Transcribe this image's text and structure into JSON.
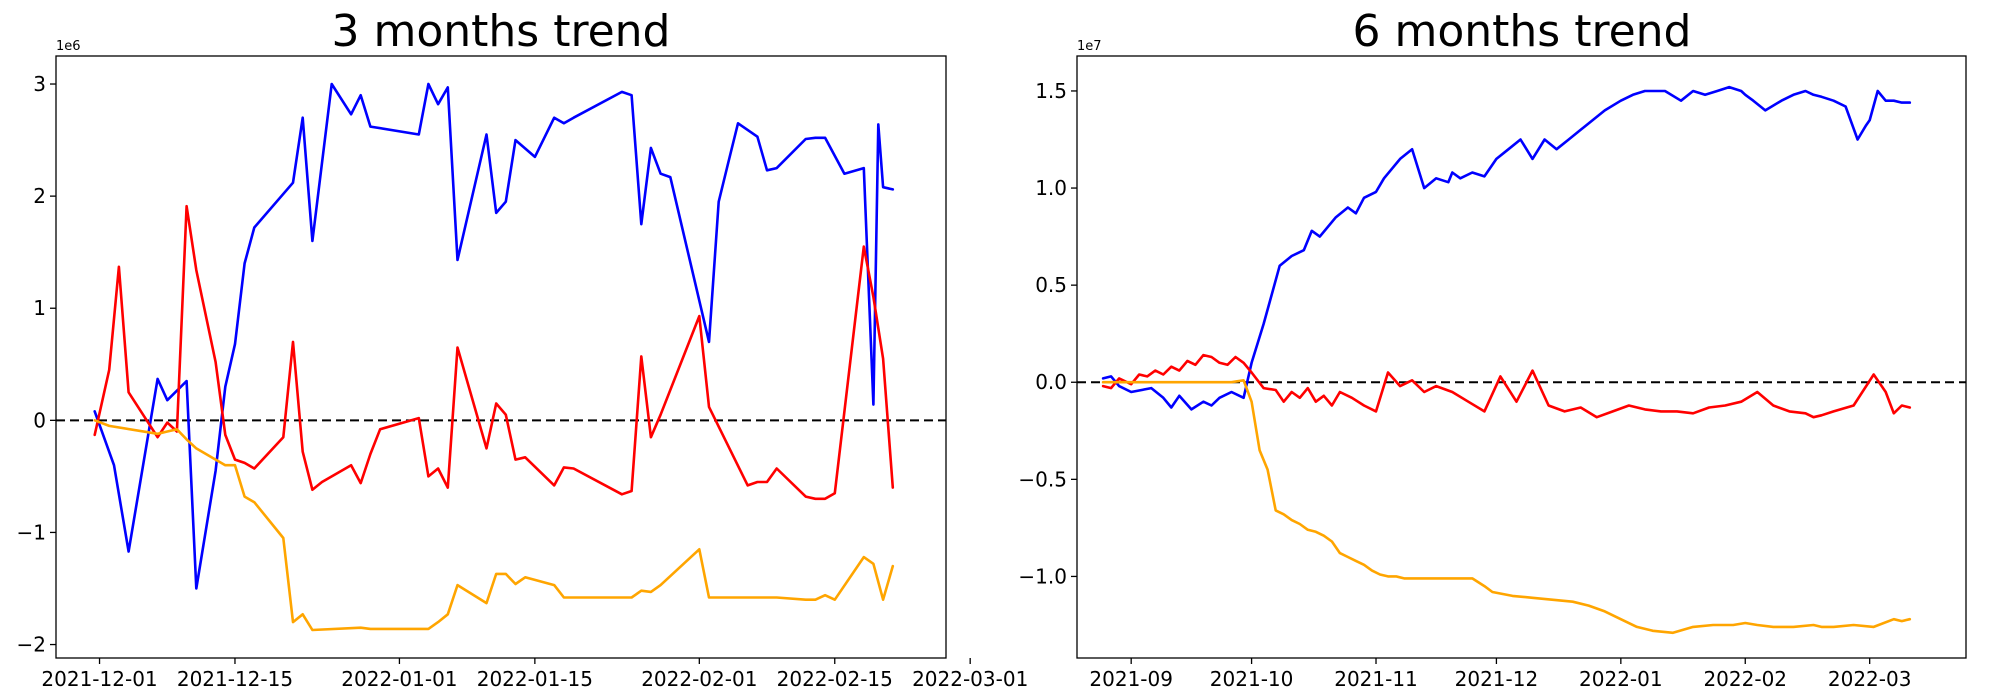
{
  "chart_data": [
    {
      "type": "line",
      "title": "3 months trend",
      "y_exponent": "1e6",
      "ylim": [
        -2.12,
        3.25
      ],
      "xlim": [
        -4.5,
        87.5
      ],
      "y_ticks": [
        -2,
        -1,
        0,
        1,
        2,
        3
      ],
      "y_tick_labels": [
        "−2",
        "−1",
        "0",
        "1",
        "2",
        "3"
      ],
      "x_ticks": [
        0,
        14,
        31,
        45,
        62,
        76,
        90
      ],
      "x_tick_labels": [
        "2021-12-01",
        "2021-12-15",
        "2022-01-01",
        "2022-01-15",
        "2022-02-01",
        "2022-02-15",
        "2022-03-01"
      ],
      "reference_line": 0,
      "series": [
        {
          "name": "blue",
          "color": "#0000ff",
          "x": [
            -0.5,
            1.5,
            3,
            6,
            7,
            9,
            10,
            12,
            13,
            14,
            15,
            16,
            20,
            21,
            22,
            24,
            26,
            27,
            28,
            33,
            34,
            35,
            36,
            37,
            40,
            41,
            42,
            43,
            45,
            47,
            48,
            49,
            54,
            55,
            56,
            57,
            58,
            59,
            63,
            64,
            65,
            66,
            68,
            69,
            70,
            73,
            74,
            75,
            77,
            79,
            80,
            80.5,
            81,
            82
          ],
          "y": [
            0.08,
            -0.4,
            -1.17,
            0.37,
            0.18,
            0.35,
            -1.5,
            -0.45,
            0.3,
            0.68,
            1.4,
            1.72,
            2.12,
            2.7,
            1.6,
            3.0,
            2.73,
            2.9,
            2.62,
            2.55,
            3.0,
            2.82,
            2.97,
            1.43,
            2.55,
            1.85,
            1.95,
            2.5,
            2.35,
            2.7,
            2.65,
            2.7,
            2.93,
            2.9,
            1.75,
            2.43,
            2.2,
            2.17,
            0.7,
            1.95,
            2.3,
            2.65,
            2.53,
            2.23,
            2.25,
            2.51,
            2.52,
            2.52,
            2.2,
            2.25,
            0.14,
            2.64,
            2.08,
            2.06
          ]
        },
        {
          "name": "red",
          "color": "#ff0000",
          "x": [
            -0.5,
            1,
            2,
            3,
            6,
            7,
            8,
            9,
            10,
            12,
            13,
            14,
            15,
            16,
            19,
            20,
            21,
            22,
            23,
            26,
            27,
            28,
            29,
            33,
            34,
            35,
            36,
            37,
            40,
            41,
            42,
            43,
            44,
            47,
            48,
            49,
            54,
            55,
            56,
            57,
            58,
            62,
            63,
            67,
            68,
            69,
            70,
            73,
            74,
            75,
            76,
            79,
            80,
            81,
            82
          ],
          "y": [
            -0.13,
            0.45,
            1.37,
            0.25,
            -0.15,
            -0.02,
            -0.1,
            1.91,
            1.34,
            0.52,
            -0.13,
            -0.35,
            -0.38,
            -0.43,
            -0.15,
            0.7,
            -0.28,
            -0.62,
            -0.55,
            -0.4,
            -0.56,
            -0.3,
            -0.08,
            0.02,
            -0.5,
            -0.43,
            -0.6,
            0.65,
            -0.25,
            0.15,
            0.05,
            -0.35,
            -0.33,
            -0.58,
            -0.42,
            -0.43,
            -0.66,
            -0.63,
            0.57,
            -0.15,
            0.05,
            0.93,
            0.12,
            -0.58,
            -0.55,
            -0.55,
            -0.43,
            -0.68,
            -0.7,
            -0.7,
            -0.65,
            1.55,
            1.1,
            0.55,
            -0.6
          ]
        },
        {
          "name": "orange",
          "color": "#ffa500",
          "x": [
            -0.5,
            1,
            6,
            7,
            8,
            9,
            10,
            12,
            13,
            14,
            15,
            16,
            19,
            20,
            21,
            22,
            27,
            28,
            34,
            35,
            36,
            37,
            40,
            41,
            42,
            43,
            44,
            47,
            48,
            49,
            54,
            55,
            56,
            57,
            58,
            62,
            63,
            67,
            69,
            70,
            73,
            74,
            75,
            76,
            79,
            80,
            81,
            82
          ],
          "y": [
            0.0,
            -0.05,
            -0.12,
            -0.1,
            -0.08,
            -0.17,
            -0.25,
            -0.35,
            -0.4,
            -0.4,
            -0.68,
            -0.73,
            -1.05,
            -1.8,
            -1.73,
            -1.87,
            -1.85,
            -1.86,
            -1.86,
            -1.8,
            -1.73,
            -1.47,
            -1.63,
            -1.37,
            -1.37,
            -1.46,
            -1.4,
            -1.47,
            -1.58,
            -1.58,
            -1.58,
            -1.58,
            -1.52,
            -1.53,
            -1.47,
            -1.15,
            -1.58,
            -1.58,
            -1.58,
            -1.58,
            -1.6,
            -1.6,
            -1.56,
            -1.6,
            -1.22,
            -1.28,
            -1.6,
            -1.3
          ]
        }
      ]
    },
    {
      "type": "line",
      "title": "6 months trend",
      "y_exponent": "1e7",
      "ylim": [
        -1.42,
        1.68
      ],
      "xlim": [
        -13.5,
        208
      ],
      "y_ticks": [
        -1.0,
        -0.5,
        0.0,
        0.5,
        1.0,
        1.5
      ],
      "y_tick_labels": [
        "−1.0",
        "−0.5",
        "0.0",
        "0.5",
        "1.0",
        "1.5"
      ],
      "x_ticks": [
        0,
        30,
        61,
        91,
        122,
        153,
        184
      ],
      "x_tick_labels": [
        "2021-09",
        "2021-10",
        "2021-11",
        "2021-12",
        "2022-01",
        "2022-02",
        "2022-03"
      ],
      "reference_line": 0,
      "series": [
        {
          "name": "blue",
          "color": "#0000ff",
          "x": [
            -7,
            -5,
            -3,
            0,
            5,
            8,
            10,
            12,
            15,
            18,
            20,
            22,
            25,
            28,
            30,
            33,
            37,
            40,
            43,
            45,
            47,
            49,
            51,
            54,
            56,
            58,
            61,
            63,
            65,
            67,
            70,
            73,
            76,
            79,
            80,
            82,
            85,
            88,
            91,
            94,
            97,
            100,
            103,
            106,
            109,
            112,
            115,
            118,
            122,
            125,
            128,
            131,
            133,
            137,
            140,
            143,
            146,
            149,
            152,
            153,
            155,
            158,
            162,
            165,
            168,
            170,
            172,
            175,
            178,
            181,
            183,
            184,
            186,
            188,
            190,
            192,
            194
          ],
          "y": [
            0.02,
            0.03,
            -0.02,
            -0.05,
            -0.03,
            -0.08,
            -0.13,
            -0.07,
            -0.14,
            -0.1,
            -0.12,
            -0.08,
            -0.05,
            -0.08,
            0.1,
            0.3,
            0.6,
            0.65,
            0.68,
            0.78,
            0.75,
            0.8,
            0.85,
            0.9,
            0.87,
            0.95,
            0.98,
            1.05,
            1.1,
            1.15,
            1.2,
            1.0,
            1.05,
            1.03,
            1.08,
            1.05,
            1.08,
            1.06,
            1.15,
            1.2,
            1.25,
            1.15,
            1.25,
            1.2,
            1.25,
            1.3,
            1.35,
            1.4,
            1.45,
            1.48,
            1.5,
            1.5,
            1.5,
            1.45,
            1.5,
            1.48,
            1.5,
            1.52,
            1.5,
            1.48,
            1.45,
            1.4,
            1.45,
            1.48,
            1.5,
            1.48,
            1.47,
            1.45,
            1.42,
            1.25,
            1.32,
            1.35,
            1.5,
            1.45,
            1.45,
            1.44,
            1.44
          ]
        },
        {
          "name": "red",
          "color": "#ff0000",
          "x": [
            -7,
            -5,
            -3,
            0,
            2,
            4,
            6,
            8,
            10,
            12,
            14,
            16,
            18,
            20,
            22,
            24,
            26,
            28,
            30,
            33,
            36,
            38,
            40,
            42,
            44,
            46,
            48,
            50,
            52,
            55,
            58,
            61,
            64,
            67,
            70,
            73,
            76,
            80,
            84,
            88,
            92,
            96,
            100,
            104,
            108,
            112,
            116,
            120,
            124,
            128,
            132,
            136,
            140,
            144,
            148,
            152,
            156,
            160,
            164,
            168,
            170,
            172,
            175,
            180,
            185,
            188,
            190,
            192,
            194
          ],
          "y": [
            -0.02,
            -0.03,
            0.02,
            -0.01,
            0.04,
            0.03,
            0.06,
            0.04,
            0.08,
            0.06,
            0.11,
            0.09,
            0.14,
            0.13,
            0.1,
            0.09,
            0.13,
            0.1,
            0.05,
            -0.03,
            -0.04,
            -0.1,
            -0.05,
            -0.08,
            -0.03,
            -0.1,
            -0.07,
            -0.12,
            -0.05,
            -0.08,
            -0.12,
            -0.15,
            0.05,
            -0.02,
            0.01,
            -0.05,
            -0.02,
            -0.05,
            -0.1,
            -0.15,
            0.03,
            -0.1,
            0.06,
            -0.12,
            -0.15,
            -0.13,
            -0.18,
            -0.15,
            -0.12,
            -0.14,
            -0.15,
            -0.15,
            -0.16,
            -0.13,
            -0.12,
            -0.1,
            -0.05,
            -0.12,
            -0.15,
            -0.16,
            -0.18,
            -0.17,
            -0.15,
            -0.12,
            0.04,
            -0.05,
            -0.16,
            -0.12,
            -0.13
          ]
        },
        {
          "name": "orange",
          "color": "#ffa500",
          "x": [
            -7,
            0,
            10,
            20,
            25,
            28,
            30,
            32,
            34,
            36,
            38,
            40,
            42,
            44,
            46,
            48,
            50,
            52,
            54,
            56,
            58,
            60,
            62,
            64,
            66,
            68,
            70,
            72,
            74,
            79,
            81,
            85,
            88,
            90,
            95,
            100,
            110,
            114,
            118,
            122,
            126,
            130,
            135,
            140,
            145,
            150,
            153,
            156,
            160,
            165,
            170,
            172,
            175,
            180,
            185,
            190,
            192,
            194
          ],
          "y": [
            0.0,
            0.0,
            0.0,
            0.0,
            0.0,
            0.01,
            -0.1,
            -0.35,
            -0.45,
            -0.66,
            -0.68,
            -0.71,
            -0.73,
            -0.76,
            -0.77,
            -0.79,
            -0.82,
            -0.88,
            -0.9,
            -0.92,
            -0.94,
            -0.97,
            -0.99,
            -1.0,
            -1.0,
            -1.01,
            -1.01,
            -1.01,
            -1.01,
            -1.01,
            -1.01,
            -1.01,
            -1.05,
            -1.08,
            -1.1,
            -1.11,
            -1.13,
            -1.15,
            -1.18,
            -1.22,
            -1.26,
            -1.28,
            -1.29,
            -1.26,
            -1.25,
            -1.25,
            -1.24,
            -1.25,
            -1.26,
            -1.26,
            -1.25,
            -1.26,
            -1.26,
            -1.25,
            -1.26,
            -1.22,
            -1.23,
            -1.22
          ]
        }
      ]
    }
  ]
}
